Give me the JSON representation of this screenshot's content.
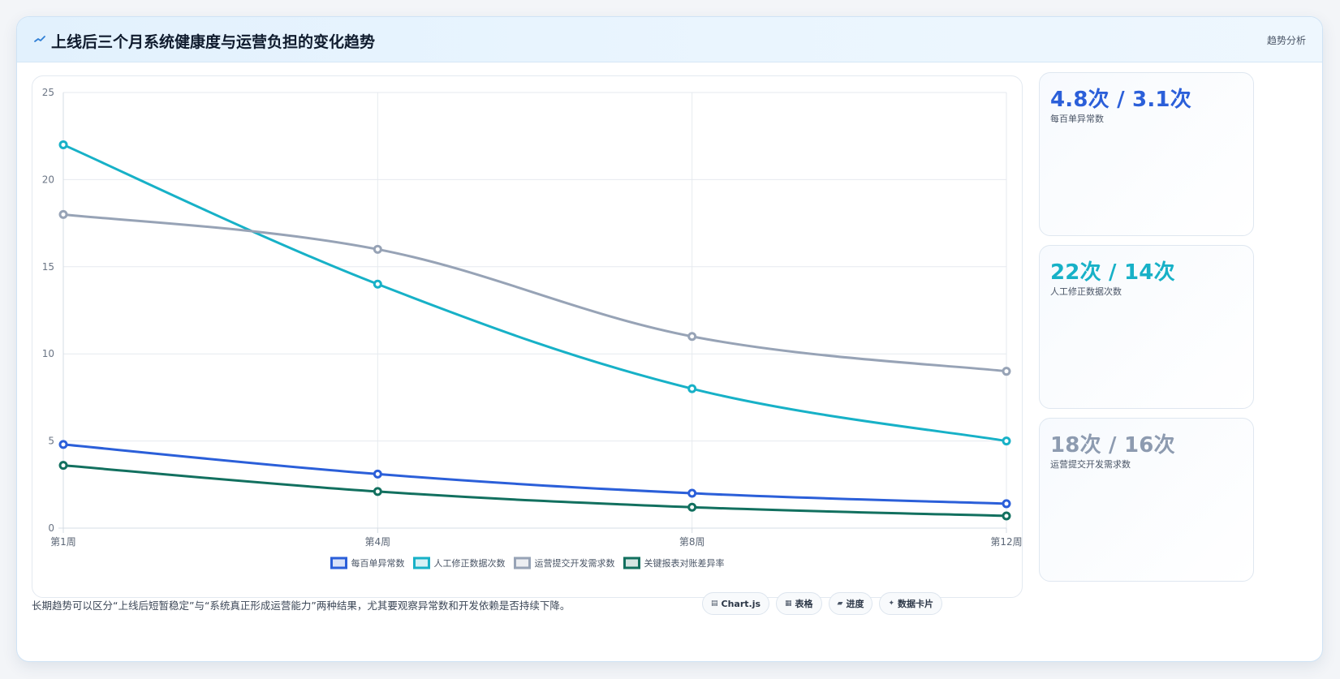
{
  "header": {
    "title": "上线后三个月系统健康度与运营负担的变化趋势",
    "icon": "trend-line-icon",
    "tag": "趋势分析"
  },
  "stats": [
    {
      "value": "4.8次 / 3.1次",
      "label": "每百单异常数",
      "color": "#2b5fd9"
    },
    {
      "value": "22次 / 14次",
      "label": "人工修正数据次数",
      "color": "#17b1c7"
    },
    {
      "value": "18次 / 16次",
      "label": "运营提交开发需求数",
      "color": "#8d9bb0"
    }
  ],
  "footer": {
    "note": "长期趋势可以区分“上线后短暂稳定”与“系统真正形成运营能力”两种结果，尤其要观察异常数和开发依赖是否持续下降。",
    "chips": [
      {
        "icon": "chart-icon",
        "glyph": "▤",
        "label": "Chart.js"
      },
      {
        "icon": "table-icon",
        "glyph": "▦",
        "label": "表格"
      },
      {
        "icon": "progress-icon",
        "glyph": "▰",
        "label": "进度"
      },
      {
        "icon": "sparkle-icon",
        "glyph": "✦",
        "label": "数据卡片"
      }
    ]
  },
  "chart_data": {
    "type": "line",
    "categories": [
      "第1周",
      "第4周",
      "第8周",
      "第12周"
    ],
    "ylim": [
      0,
      25
    ],
    "yticks": [
      0,
      5,
      10,
      15,
      20,
      25
    ],
    "grid": true,
    "legend_position": "bottom",
    "series": [
      {
        "name": "每百单异常数",
        "color": "#2b5fd9",
        "values": [
          4.8,
          3.1,
          2.0,
          1.4
        ]
      },
      {
        "name": "人工修正数据次数",
        "color": "#17b1c7",
        "values": [
          22,
          14,
          8,
          5
        ]
      },
      {
        "name": "运营提交开发需求数",
        "color": "#97a3b6",
        "values": [
          18,
          16,
          11,
          9
        ]
      },
      {
        "name": "关键报表对账差异率",
        "color": "#12705f",
        "values": [
          3.6,
          2.1,
          1.2,
          0.7
        ]
      }
    ]
  }
}
